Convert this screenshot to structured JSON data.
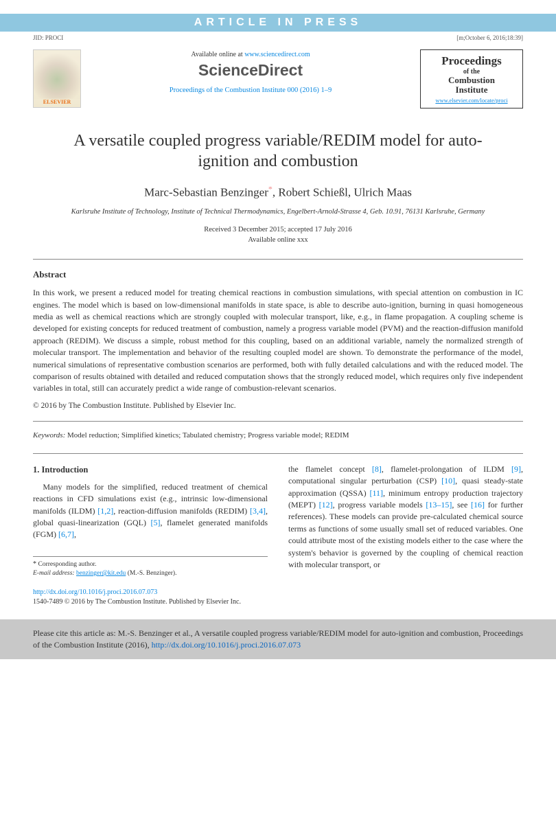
{
  "banner": "ARTICLE IN PRESS",
  "meta": {
    "jid": "JID: PROCI",
    "stamp": "[m;October 6, 2016;18:39]"
  },
  "header": {
    "available_prefix": "Available online at ",
    "available_link": "www.sciencedirect.com",
    "sd_logo": "ScienceDirect",
    "journal_ref": "Proceedings of the Combustion Institute 000 (2016) 1–9",
    "elsevier_label": "ELSEVIER",
    "journal_box": {
      "line1": "Proceedings",
      "line2": "of the",
      "line3": "Combustion",
      "line4": "Institute",
      "link": "www.elsevier.com/locate/proci"
    }
  },
  "title": "A versatile coupled progress variable/REDIM model for auto-ignition and combustion",
  "authors": {
    "a1": "Marc-Sebastian Benzinger",
    "a2": ", Robert Schießl, Ulrich Maas"
  },
  "affiliation": "Karlsruhe Institute of Technology, Institute of Technical Thermodynamics, Engelbert-Arnold-Strasse 4, Geb. 10.91, 76131 Karlsruhe, Germany",
  "dates": {
    "line1": "Received 3 December 2015; accepted 17 July 2016",
    "line2": "Available online xxx"
  },
  "abstract_head": "Abstract",
  "abstract": "In this work, we present a reduced model for treating chemical reactions in combustion simulations, with special attention on combustion in IC engines. The model which is based on low-dimensional manifolds in state space, is able to describe auto-ignition, burning in quasi homogeneous media as well as chemical reactions which are strongly coupled with molecular transport, like, e.g., in flame propagation. A coupling scheme is developed for existing concepts for reduced treatment of combustion, namely a progress variable model (PVM) and the reaction-diffusion manifold approach (REDIM). We discuss a simple, robust method for this coupling, based on an additional variable, namely the normalized strength of molecular transport. The implementation and behavior of the resulting coupled model are shown. To demonstrate the performance of the model, numerical simulations of representative combustion scenarios are performed, both with fully detailed calculations and with the reduced model. The comparison of results obtained with detailed and reduced computation shows that the strongly reduced model, which requires only five independent variables in total, still can accurately predict a wide range of combustion-relevant scenarios.",
  "copyright": "© 2016 by The Combustion Institute. Published by Elsevier Inc.",
  "keywords_label": "Keywords:",
  "keywords": "  Model reduction; Simplified kinetics; Tabulated chemistry; Progress variable model; REDIM",
  "section1_head": "1. Introduction",
  "col_left": {
    "p1a": "Many models for the simplified, reduced treatment of chemical reactions in CFD simulations exist (e.g., intrinsic low-dimensional manifolds (ILDM) ",
    "r1": "[1,2]",
    "p1b": ", reaction-diffusion manifolds (REDIM) ",
    "r2": "[3,4]",
    "p1c": ", global quasi-linearization (GQL) ",
    "r3": "[5]",
    "p1d": ", flamelet generated manifolds (FGM) ",
    "r4": "[6,7]",
    "p1e": ","
  },
  "col_right": {
    "p1a": "the flamelet concept ",
    "r1": "[8]",
    "p1b": ", flamelet-prolongation of ILDM ",
    "r2": "[9]",
    "p1c": ", computational singular perturbation (CSP) ",
    "r3": "[10]",
    "p1d": ", quasi steady-state approximation (QSSA) ",
    "r4": "[11]",
    "p1e": ", minimum entropy production trajectory (MEPT) ",
    "r5": "[12]",
    "p1f": ", progress variable models ",
    "r6": "[13–15]",
    "p1g": ", see ",
    "r7": "[16]",
    "p1h": " for further references). These models can provide pre-calculated chemical source terms as functions of some usually small set of reduced variables. One could attribute most of the existing models either to the case where the system's behavior is governed by the coupling of chemical reaction with molecular transport, or"
  },
  "footer": {
    "corr": "Corresponding author.",
    "email_label": "E-mail address: ",
    "email": "benzinger@kit.edu",
    "email_who": " (M.-S. Benzinger)."
  },
  "doi": {
    "link": "http://dx.doi.org/10.1016/j.proci.2016.07.073",
    "issn": "1540-7489 © 2016 by The Combustion Institute. Published by Elsevier Inc."
  },
  "citebox": {
    "text1": "Please cite this article as: M.-S. Benzinger et al., A versatile coupled progress variable/REDIM model for auto-ignition and combustion, Proceedings of the Combustion Institute (2016), ",
    "link": "http://dx.doi.org/10.1016/j.proci.2016.07.073"
  }
}
